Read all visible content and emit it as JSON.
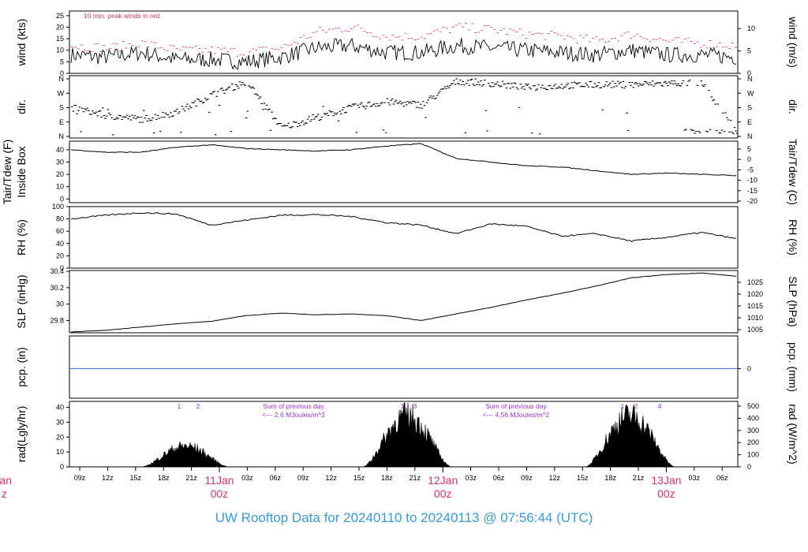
{
  "page": {
    "footer_title": "UW Rooftop Data for 20240110  to  20240113 @ 07:56:44  (UTC)"
  },
  "colors": {
    "axis": "#000000",
    "series": "#000000",
    "peak_wind": "#d6336c",
    "precip_line": "#4472c4",
    "annotation": "#9b30d9",
    "day_label": "#d6336c",
    "footer": "#3a9ad9"
  },
  "chart_data": [
    {
      "type": "line",
      "id": "wind",
      "ylabel": "wind (kts)",
      "ylabel_right": "wind (m/s)",
      "ylim": [
        0,
        27
      ],
      "yticks": [
        0,
        5,
        10,
        15,
        20,
        25
      ],
      "yticks_right": [
        "0",
        "5",
        "10"
      ],
      "annotation": "10 min. peak winds in red",
      "series": [
        {
          "values": [
            8,
            7,
            9,
            6,
            6,
            5,
            7,
            11,
            12,
            9,
            9,
            12,
            11,
            10,
            9,
            8,
            10,
            8,
            8,
            7
          ]
        },
        {
          "values": [
            12,
            11,
            13,
            10,
            10,
            9,
            11,
            18,
            20,
            16,
            16,
            20,
            19,
            17,
            16,
            14,
            17,
            14,
            13,
            12
          ]
        }
      ]
    },
    {
      "type": "scatter",
      "id": "dir",
      "ylabel": "dir.",
      "ylabel_right": "dir.",
      "yticks": [
        "N",
        "E",
        "S",
        "W",
        "N"
      ]
    },
    {
      "type": "line",
      "id": "temp",
      "ylabel": "Tair/Tdew (F)",
      "ylabel2": "Inside Box",
      "ylabel_right": "Tair/Tdew (C)",
      "ylim": [
        -3,
        47
      ],
      "yticks": [
        0,
        10,
        20,
        30,
        40
      ],
      "yticks_right": [
        "5",
        "0",
        "-5",
        "-10",
        "-15",
        "-20"
      ],
      "values": [
        40,
        38,
        38,
        42,
        44,
        41,
        40,
        39,
        40,
        43,
        45,
        33,
        30,
        27,
        26,
        23,
        20,
        21,
        20,
        19
      ]
    },
    {
      "type": "line",
      "id": "rh",
      "ylabel": "RH (%)",
      "ylabel_right": "RH (%)",
      "ylim": [
        0,
        100
      ],
      "yticks": [
        0,
        20,
        40,
        60,
        80,
        100
      ],
      "values": [
        80,
        86,
        90,
        88,
        70,
        78,
        86,
        87,
        84,
        74,
        70,
        56,
        72,
        68,
        52,
        56,
        44,
        50,
        58,
        48
      ]
    },
    {
      "type": "line",
      "id": "slp",
      "ylabel": "SLP (inHg)",
      "ylabel_right": "SLP (hPa)",
      "ylim": [
        29.65,
        30.41
      ],
      "yticks": [
        29.8,
        30.0,
        30.2,
        30.4
      ],
      "yticks_right": [
        "1005",
        "1010",
        "1015",
        "1020",
        "1025"
      ],
      "values": [
        29.66,
        29.68,
        29.72,
        29.76,
        29.79,
        29.86,
        29.89,
        29.87,
        29.88,
        29.86,
        29.8,
        29.88,
        29.96,
        30.05,
        30.13,
        30.22,
        30.32,
        30.36,
        30.38,
        30.34
      ]
    },
    {
      "type": "line",
      "id": "pcp",
      "ylabel": "pcp. (in)",
      "ylabel_right": "pcp. (mm)",
      "yticks": [
        "0"
      ],
      "yticks_right": [
        "0"
      ],
      "values": [
        0,
        0
      ]
    },
    {
      "type": "area",
      "id": "rad",
      "ylabel": "rad(Lgly/hr)",
      "ylabel_right": "rad (W/m^2)",
      "ylim": [
        0,
        44
      ],
      "yticks": [
        0,
        10,
        20,
        30,
        40
      ],
      "yticks_right": [
        "0",
        "100",
        "200",
        "300",
        "400",
        "500"
      ],
      "days": [
        {
          "label": "1",
          "peak": 18
        },
        {
          "label": "1",
          "peak": 44
        },
        {
          "label": "2",
          "peak": 44
        }
      ],
      "markers": [
        "1",
        "2",
        "1",
        "3",
        "1",
        "2",
        "4"
      ],
      "notes": [
        {
          "text1": "Sum of previous day",
          "text2": "<--- 2.6 MJoules/m^2"
        },
        {
          "text1": "Sum of previous day",
          "text2": "<--- 4.56 MJoules/m^2"
        }
      ]
    }
  ],
  "x_axis": {
    "hour_ticks": [
      "09z",
      "12z",
      "15z",
      "18z",
      "21z",
      "03z",
      "06z",
      "09z",
      "12z",
      "15z",
      "18z",
      "21z",
      "03z",
      "06z",
      "09z",
      "12z",
      "15z",
      "18z",
      "21z",
      "03z",
      "06z"
    ],
    "day_labels": [
      {
        "date": "11Jan",
        "time": "00z"
      },
      {
        "date": "12Jan",
        "time": "00z"
      },
      {
        "date": "13Jan",
        "time": "00z"
      }
    ],
    "cut_label": {
      "date": "an",
      "time": "z"
    }
  }
}
